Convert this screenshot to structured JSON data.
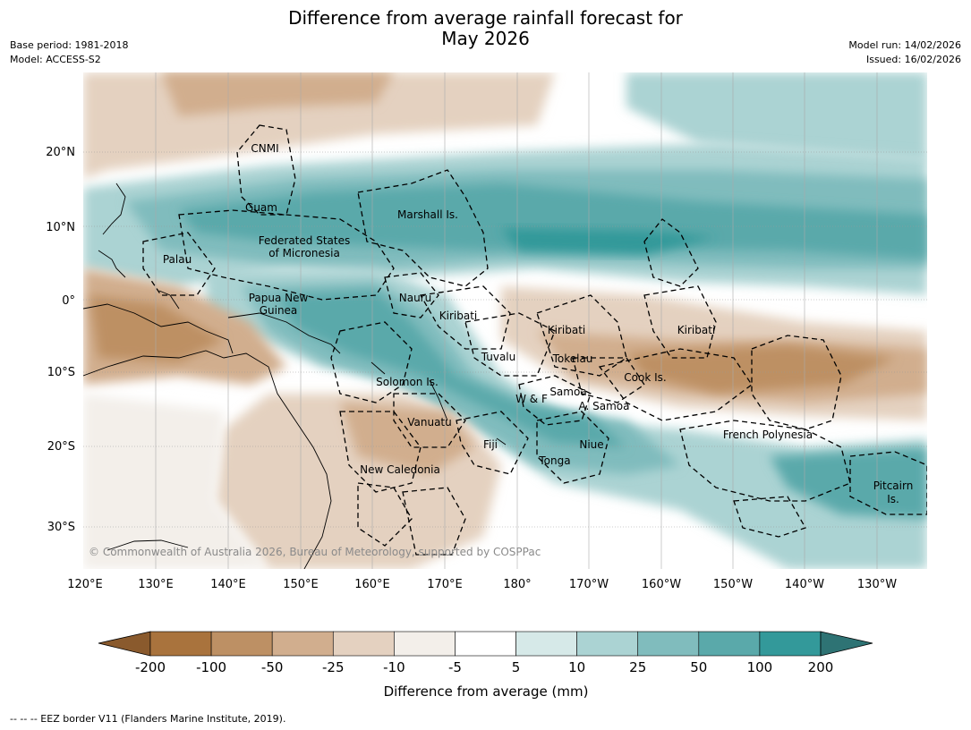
{
  "header": {
    "title_line1": "Difference from average rainfall forecast for",
    "title_line2": "May 2026",
    "base_period": "Base period: 1981-2018",
    "model": "Model: ACCESS-S2",
    "model_run": "Model run: 14/02/2026",
    "issued": "Issued: 16/02/2026"
  },
  "map": {
    "lon_ticks": [
      "120°E",
      "130°E",
      "140°E",
      "150°E",
      "160°E",
      "170°E",
      "180°",
      "170°W",
      "160°W",
      "150°W",
      "140°W",
      "130°W"
    ],
    "lat_ticks": [
      "20°N",
      "10°N",
      "0°",
      "10°S",
      "20°S",
      "30°S"
    ],
    "copyright": "© Commonwealth of Australia 2026, Bureau of Meteorology, supported by COSPPac",
    "regions": [
      {
        "name": "CNMI"
      },
      {
        "name": "Guam"
      },
      {
        "name": "Marshall Is."
      },
      {
        "name": "Federated States"
      },
      {
        "name": "of Micronesia"
      },
      {
        "name": "Palau"
      },
      {
        "name": "Papua New"
      },
      {
        "name": "Guinea"
      },
      {
        "name": "Nauru"
      },
      {
        "name": "Kiribati"
      },
      {
        "name": "Kiribati"
      },
      {
        "name": "Kiribati"
      },
      {
        "name": "Tuvalu"
      },
      {
        "name": "Tokelau"
      },
      {
        "name": "Cook Is."
      },
      {
        "name": "Solomon Is."
      },
      {
        "name": "Samoa"
      },
      {
        "name": "W & F"
      },
      {
        "name": "A. Samoa"
      },
      {
        "name": "Vanuatu"
      },
      {
        "name": "Fiji"
      },
      {
        "name": "Niue"
      },
      {
        "name": "French Polynesia"
      },
      {
        "name": "Tonga"
      },
      {
        "name": "New Caledonia"
      },
      {
        "name": "Pitcairn"
      },
      {
        "name": "Is."
      }
    ]
  },
  "colorbar": {
    "labels": [
      "-200",
      "-100",
      "-50",
      "-25",
      "-10",
      "-5",
      "5",
      "10",
      "25",
      "50",
      "100",
      "200"
    ],
    "title": "Difference from average (mm)",
    "colors": [
      "#a9733d",
      "#bd9064",
      "#d1ae8e",
      "#e4d1c0",
      "#f3efea",
      "#ffffff",
      "#d6e9e8",
      "#abd3d3",
      "#80bcbd",
      "#5aa9aa",
      "#33999a"
    ],
    "low_extend": "#8a5a2d",
    "high_extend": "#2e7374"
  },
  "footer": {
    "legend_text": "--  --  -- EEZ border V11 (Flanders Marine Institute, 2019)."
  }
}
